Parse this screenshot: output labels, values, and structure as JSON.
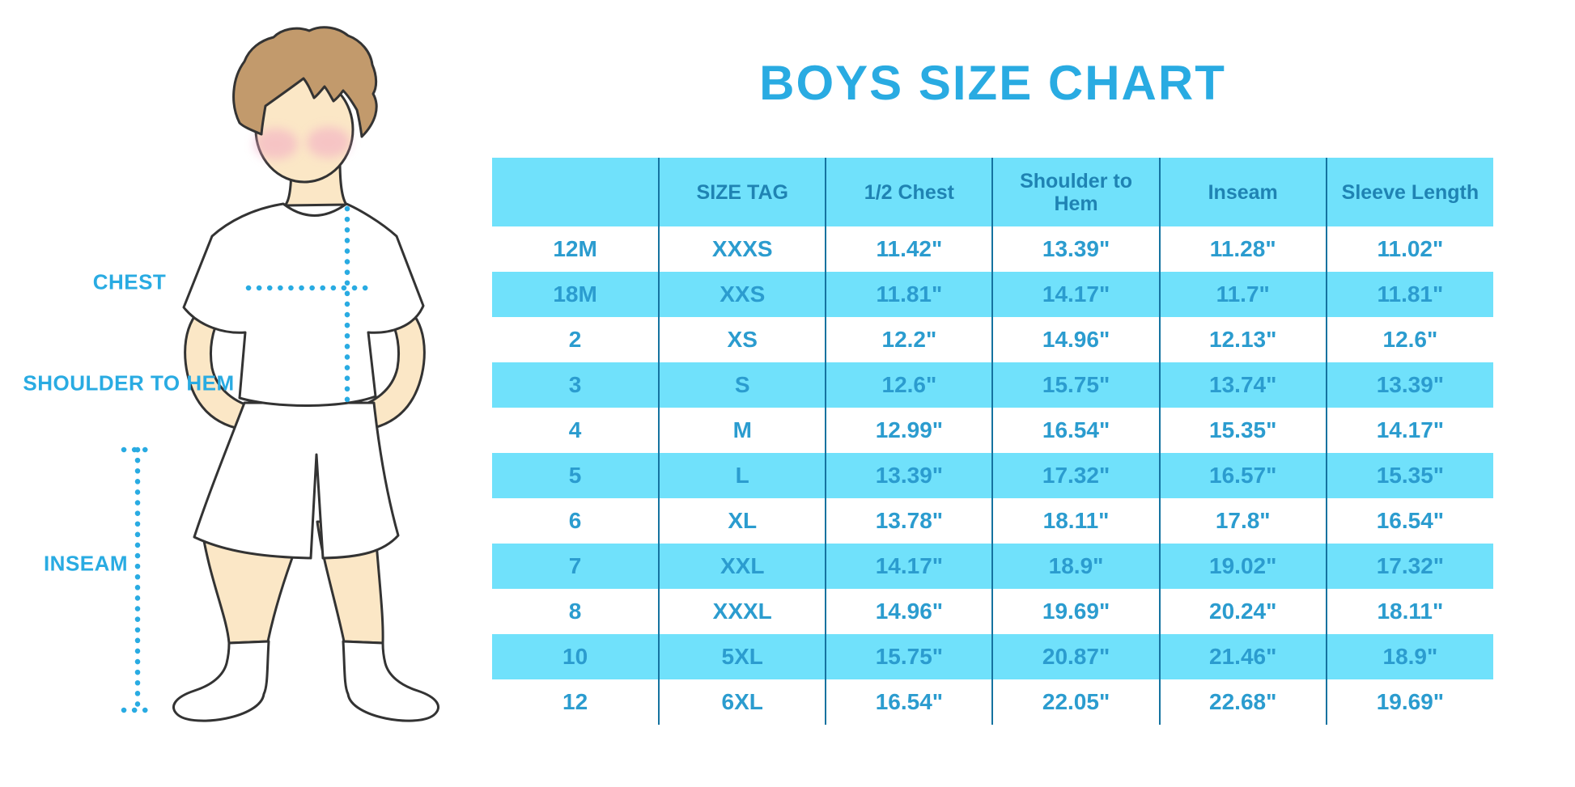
{
  "title": "BOYS SIZE CHART",
  "illustration": {
    "labels": [
      {
        "id": "chest",
        "text": "CHEST"
      },
      {
        "id": "shoulder_to_hem",
        "text": "SHOULDER TO HEM"
      },
      {
        "id": "inseam",
        "text": "INSEAM"
      }
    ]
  },
  "chart_data": {
    "type": "table",
    "title": "BOYS SIZE CHART",
    "columns": [
      "",
      "SIZE TAG",
      "1/2 Chest",
      "Shoulder to Hem",
      "Inseam",
      "Sleeve Length"
    ],
    "rows": [
      [
        "12M",
        "XXXS",
        "11.42\"",
        "13.39\"",
        "11.28\"",
        "11.02\""
      ],
      [
        "18M",
        "XXS",
        "11.81\"",
        "14.17\"",
        "11.7\"",
        "11.81\""
      ],
      [
        "2",
        "XS",
        "12.2\"",
        "14.96\"",
        "12.13\"",
        "12.6\""
      ],
      [
        "3",
        "S",
        "12.6\"",
        "15.75\"",
        "13.74\"",
        "13.39\""
      ],
      [
        "4",
        "M",
        "12.99\"",
        "16.54\"",
        "15.35\"",
        "14.17\""
      ],
      [
        "5",
        "L",
        "13.39\"",
        "17.32\"",
        "16.57\"",
        "15.35\""
      ],
      [
        "6",
        "XL",
        "13.78\"",
        "18.11\"",
        "17.8\"",
        "16.54\""
      ],
      [
        "7",
        "XXL",
        "14.17\"",
        "18.9\"",
        "19.02\"",
        "17.32\""
      ],
      [
        "8",
        "XXXL",
        "14.96\"",
        "19.69\"",
        "20.24\"",
        "18.11\""
      ],
      [
        "10",
        "5XL",
        "15.75\"",
        "20.87\"",
        "21.46\"",
        "18.9\""
      ],
      [
        "12",
        "6XL",
        "16.54\"",
        "22.05\"",
        "22.68\"",
        "19.69\""
      ]
    ],
    "row_striping": "white and light cyan alternating, first data row white",
    "grid": "vertical column dividers only, no horizontal borders",
    "legend_position": "none"
  },
  "colors": {
    "accent": "#29abe2",
    "band": "#70e1fb",
    "divider": "#1573a0",
    "header_text": "#1f83b3",
    "cell_text": "#2b9ccf",
    "skin": "#fbe7c6",
    "hair": "#c29a6c",
    "cheek": "#f2a9c4",
    "outline": "#333333",
    "background": "#ffffff"
  }
}
